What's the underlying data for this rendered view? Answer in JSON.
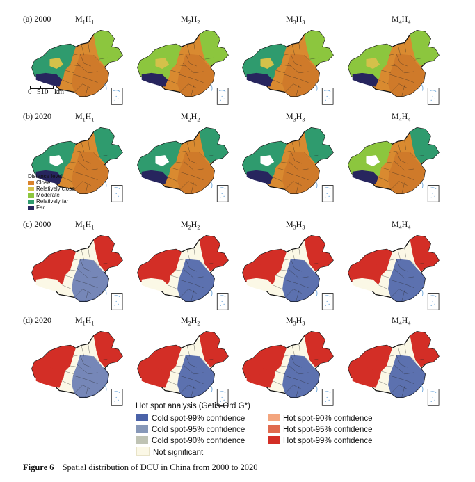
{
  "row_labels": [
    "(a) 2000",
    "(b) 2020",
    "(c) 2000",
    "(d) 2020"
  ],
  "models": [
    {
      "m": "M",
      "ms": "1",
      "h": "H",
      "hs": "1"
    },
    {
      "m": "M",
      "ms": "2",
      "h": "H",
      "hs": "2"
    },
    {
      "m": "M",
      "ms": "3",
      "h": "H",
      "hs": "3"
    },
    {
      "m": "M",
      "ms": "4",
      "h": "H",
      "hs": "4"
    }
  ],
  "scale_bar": {
    "ticks": [
      "0",
      "510"
    ],
    "unit": "km"
  },
  "distance_legend": {
    "title": "Distance level",
    "items": [
      {
        "label": "Close",
        "color": "#d9822b"
      },
      {
        "label": "Relatively close",
        "color": "#d4c14a"
      },
      {
        "label": "Moderate",
        "color": "#8cc63e"
      },
      {
        "label": "Relatively far",
        "color": "#2f9b6e"
      },
      {
        "label": "Far",
        "color": "#27255e"
      }
    ]
  },
  "hotspot_legend": {
    "title": "Hot spot analysis (Getis-Ord G*)",
    "left": [
      {
        "label": "Cold spot-99% confidence",
        "color": "#4a62a8"
      },
      {
        "label": "Cold spot-95% confidence",
        "color": "#8798b8"
      },
      {
        "label": "Cold spot-90% confidence",
        "color": "#bfc3b4"
      },
      {
        "label": "Not significant",
        "color": "#fbf8e6"
      }
    ],
    "right": [
      {
        "label": "Hot spot-90% confidence",
        "color": "#f3a57e"
      },
      {
        "label": "Hot spot-95% confidence",
        "color": "#e06a4e"
      },
      {
        "label": "Hot spot-99% confidence",
        "color": "#d32e26"
      }
    ]
  },
  "caption": {
    "label": "Figure 6",
    "text": "Spatial distribution of DCU in China from 2000 to 2020"
  }
}
